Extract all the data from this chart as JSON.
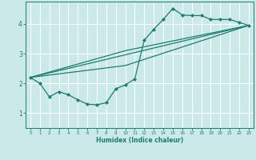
{
  "xlabel": "Humidex (Indice chaleur)",
  "xlim": [
    -0.5,
    23.5
  ],
  "ylim": [
    0.5,
    4.75
  ],
  "xticks": [
    0,
    1,
    2,
    3,
    4,
    5,
    6,
    7,
    8,
    9,
    10,
    11,
    12,
    13,
    14,
    15,
    16,
    17,
    18,
    19,
    20,
    21,
    22,
    23
  ],
  "yticks": [
    1,
    2,
    3,
    4
  ],
  "bg_color": "#cce9ea",
  "line_color": "#1e7b6e",
  "grid_color": "#ffffff",
  "curve": {
    "x": [
      0,
      1,
      2,
      3,
      4,
      5,
      6,
      7,
      8,
      9,
      10,
      11,
      12,
      13,
      14,
      15,
      16,
      17,
      18,
      19,
      20,
      21,
      22,
      23
    ],
    "y": [
      2.2,
      2.0,
      1.55,
      1.72,
      1.62,
      1.45,
      1.3,
      1.28,
      1.35,
      1.82,
      1.95,
      2.15,
      3.45,
      3.82,
      4.15,
      4.52,
      4.3,
      4.28,
      4.28,
      4.15,
      4.15,
      4.15,
      4.05,
      3.95
    ]
  },
  "straight_lines": [
    {
      "x": [
        0,
        23
      ],
      "y": [
        2.2,
        3.95
      ]
    },
    {
      "x": [
        0,
        10,
        23
      ],
      "y": [
        2.2,
        2.6,
        3.95
      ]
    },
    {
      "x": [
        0,
        10,
        23
      ],
      "y": [
        2.2,
        3.1,
        3.95
      ]
    }
  ]
}
